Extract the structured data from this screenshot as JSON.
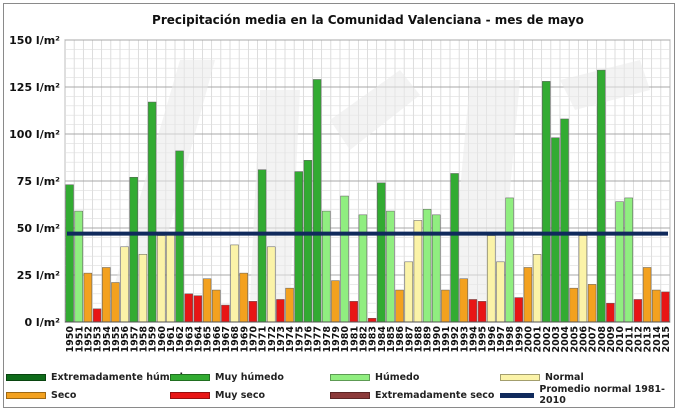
{
  "chart_data": {
    "type": "bar",
    "title": "Precipitación media en la Comunidad Valenciana - mes de mayo",
    "ylim": [
      0,
      150
    ],
    "yticks": [
      0,
      25,
      50,
      75,
      100,
      125,
      150
    ],
    "y_unit": "l/m²",
    "grid": true,
    "categories": [
      "1950",
      "1951",
      "1952",
      "1953",
      "1954",
      "1955",
      "1956",
      "1957",
      "1958",
      "1959",
      "1960",
      "1961",
      "1962",
      "1963",
      "1964",
      "1965",
      "1966",
      "1967",
      "1968",
      "1969",
      "1970",
      "1971",
      "1972",
      "1973",
      "1974",
      "1975",
      "1976",
      "1977",
      "1978",
      "1979",
      "1980",
      "1981",
      "1982",
      "1983",
      "1984",
      "1985",
      "1986",
      "1987",
      "1988",
      "1989",
      "1990",
      "1991",
      "1992",
      "1993",
      "1994",
      "1995",
      "1996",
      "1997",
      "1998",
      "1999",
      "2000",
      "2001",
      "2002",
      "2003",
      "2004",
      "2005",
      "2006",
      "2007",
      "2008",
      "2009",
      "2010",
      "2011",
      "2012",
      "2013",
      "2014",
      "2015"
    ],
    "values": [
      73,
      59,
      26,
      7,
      29,
      21,
      40,
      77,
      36,
      117,
      46,
      47,
      91,
      15,
      14,
      23,
      17,
      9,
      41,
      26,
      11,
      81,
      40,
      12,
      18,
      80,
      86,
      129,
      59,
      22,
      67,
      11,
      57,
      2,
      74,
      59,
      17,
      32,
      54,
      60,
      57,
      17,
      79,
      23,
      12,
      11,
      46,
      32,
      66,
      13,
      29,
      36,
      128,
      98,
      108,
      18,
      46,
      20,
      134,
      10,
      64,
      66,
      12,
      29,
      17,
      16
    ],
    "classes": [
      "mh",
      "h",
      "s",
      "ms",
      "s",
      "s",
      "n",
      "mh",
      "n",
      "mh",
      "n",
      "n",
      "mh",
      "ms",
      "ms",
      "s",
      "s",
      "ms",
      "n",
      "s",
      "ms",
      "mh",
      "n",
      "ms",
      "s",
      "mh",
      "mh",
      "mh",
      "h",
      "s",
      "h",
      "ms",
      "h",
      "ms",
      "mh",
      "h",
      "s",
      "n",
      "n",
      "h",
      "h",
      "s",
      "mh",
      "s",
      "ms",
      "ms",
      "n",
      "n",
      "h",
      "ms",
      "s",
      "n",
      "mh",
      "mh",
      "mh",
      "s",
      "n",
      "s",
      "mh",
      "ms",
      "h",
      "h",
      "ms",
      "s",
      "s",
      "ms"
    ],
    "reference_line": {
      "name": "Promedio normal 1981-2010",
      "value": 47,
      "color": "#102a5c"
    },
    "legend": [
      {
        "key": "eh",
        "label": "Extremadamente húmedo",
        "color": "#0e6b1a"
      },
      {
        "key": "mh",
        "label": "Muy húmedo",
        "color": "#32ab32"
      },
      {
        "key": "h",
        "label": "Húmedo",
        "color": "#90ee80"
      },
      {
        "key": "n",
        "label": "Normal",
        "color": "#fbf3a8"
      },
      {
        "key": "s",
        "label": "Seco",
        "color": "#f3a11f"
      },
      {
        "key": "ms",
        "label": "Muy seco",
        "color": "#e81515"
      },
      {
        "key": "es",
        "label": "Extremadamente seco",
        "color": "#8c3a3a"
      },
      {
        "key": "ref",
        "label": "Promedio normal 1981-2010",
        "color": "#102a5c"
      }
    ]
  }
}
